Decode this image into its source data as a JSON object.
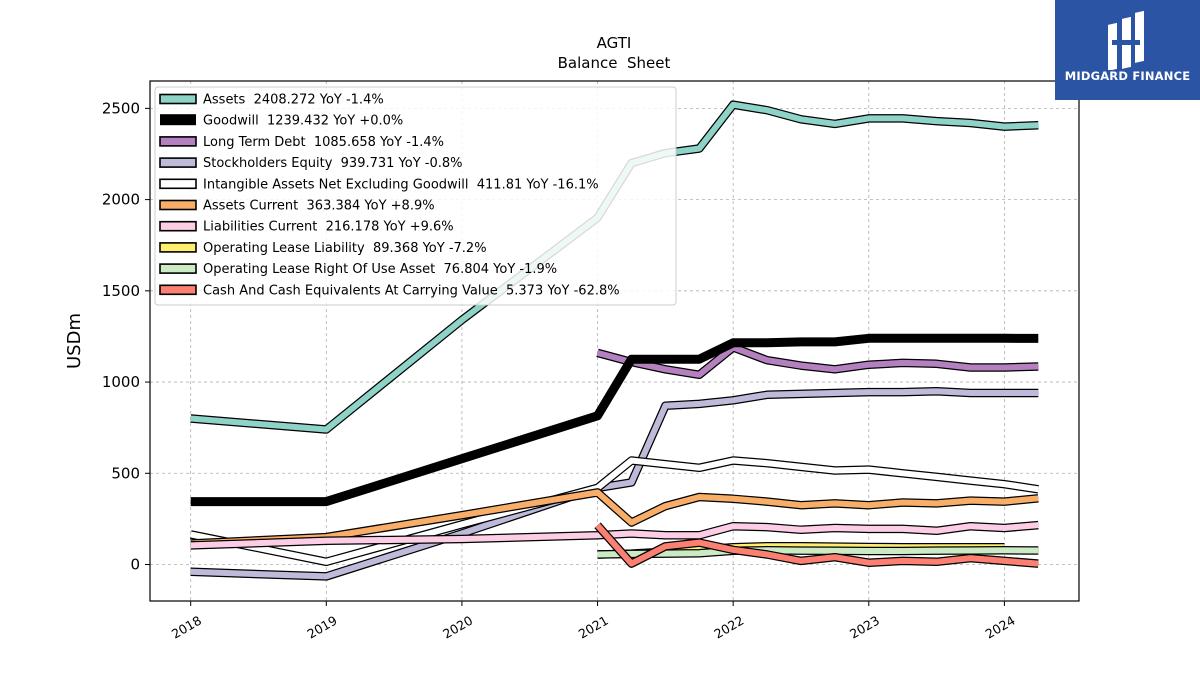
{
  "brand": {
    "name": "MIDGARD FINANCE",
    "logo_icon": "double-tower-logo-icon",
    "background": "#2b55a4"
  },
  "chart_data": {
    "type": "line",
    "title": "AGTI",
    "subtitle": "Balance  Sheet",
    "xlabel": "",
    "ylabel": "USDm",
    "xlim": [
      2017.7,
      2024.55
    ],
    "ylim": [
      -200,
      2650
    ],
    "xticks": [
      "2018",
      "2019",
      "2020",
      "2021",
      "2022",
      "2023",
      "2024"
    ],
    "yticks": [
      0,
      500,
      1000,
      1500,
      2000,
      2500
    ],
    "grid": true,
    "legend_position": "top-left",
    "series": [
      {
        "name": "Assets",
        "summary": "Assets  2408.272 YoY -1.4%",
        "color": "#8dd3c7",
        "width": 6,
        "points": [
          [
            2018.0,
            800
          ],
          [
            2019.0,
            740
          ],
          [
            2020.0,
            1340
          ],
          [
            2021.0,
            1900
          ],
          [
            2021.25,
            2200
          ],
          [
            2021.5,
            2255
          ],
          [
            2021.75,
            2280
          ],
          [
            2022.0,
            2520
          ],
          [
            2022.25,
            2490
          ],
          [
            2022.5,
            2440
          ],
          [
            2022.75,
            2415
          ],
          [
            2023.0,
            2445
          ],
          [
            2023.25,
            2445
          ],
          [
            2023.5,
            2430
          ],
          [
            2023.75,
            2420
          ],
          [
            2024.0,
            2400
          ],
          [
            2024.25,
            2408
          ]
        ]
      },
      {
        "name": "Goodwill",
        "summary": "Goodwill  1239.432 YoY +0.0%",
        "color": "#000000",
        "width": 9,
        "points": [
          [
            2018.0,
            345
          ],
          [
            2019.0,
            345
          ],
          [
            2020.0,
            580
          ],
          [
            2021.0,
            815
          ],
          [
            2021.25,
            1125
          ],
          [
            2021.5,
            1125
          ],
          [
            2021.75,
            1125
          ],
          [
            2022.0,
            1215
          ],
          [
            2022.25,
            1215
          ],
          [
            2022.5,
            1220
          ],
          [
            2022.75,
            1220
          ],
          [
            2023.0,
            1240
          ],
          [
            2023.25,
            1240
          ],
          [
            2023.5,
            1240
          ],
          [
            2023.75,
            1240
          ],
          [
            2024.0,
            1240
          ],
          [
            2024.25,
            1239
          ]
        ]
      },
      {
        "name": "Long Term Debt",
        "summary": "Long Term Debt  1085.658 YoY -1.4%",
        "color": "#b580bf",
        "width": 6,
        "points": [
          [
            2021.0,
            1160
          ],
          [
            2021.25,
            1110
          ],
          [
            2021.5,
            1070
          ],
          [
            2021.75,
            1040
          ],
          [
            2022.0,
            1190
          ],
          [
            2022.25,
            1120
          ],
          [
            2022.5,
            1090
          ],
          [
            2022.75,
            1070
          ],
          [
            2023.0,
            1095
          ],
          [
            2023.25,
            1105
          ],
          [
            2023.5,
            1100
          ],
          [
            2023.75,
            1080
          ],
          [
            2024.0,
            1080
          ],
          [
            2024.25,
            1085
          ]
        ]
      },
      {
        "name": "Stockholders Equity",
        "summary": "Stockholders Equity  939.731 YoY -0.8%",
        "color": "#bebada",
        "width": 6,
        "points": [
          [
            2018.0,
            -40
          ],
          [
            2019.0,
            -65
          ],
          [
            2020.0,
            170
          ],
          [
            2021.0,
            420
          ],
          [
            2021.25,
            450
          ],
          [
            2021.5,
            870
          ],
          [
            2021.75,
            880
          ],
          [
            2022.0,
            900
          ],
          [
            2022.25,
            930
          ],
          [
            2022.5,
            935
          ],
          [
            2022.75,
            940
          ],
          [
            2023.0,
            945
          ],
          [
            2023.25,
            945
          ],
          [
            2023.5,
            950
          ],
          [
            2023.75,
            940
          ],
          [
            2024.0,
            940
          ],
          [
            2024.25,
            940
          ]
        ]
      },
      {
        "name": "Intangible Assets Net Excluding Goodwill",
        "summary": "Intangible Assets Net Excluding Goodwill  411.81 YoY -16.1%",
        "color": "#ffffff",
        "width": 6,
        "points": [
          [
            2018.0,
            165
          ],
          [
            2019.0,
            15
          ],
          [
            2020.0,
            220
          ],
          [
            2021.0,
            420
          ],
          [
            2021.25,
            570
          ],
          [
            2021.5,
            550
          ],
          [
            2021.75,
            530
          ],
          [
            2022.0,
            570
          ],
          [
            2022.25,
            555
          ],
          [
            2022.5,
            535
          ],
          [
            2022.75,
            515
          ],
          [
            2023.0,
            520
          ],
          [
            2023.25,
            500
          ],
          [
            2023.5,
            480
          ],
          [
            2023.75,
            460
          ],
          [
            2024.0,
            440
          ],
          [
            2024.25,
            412
          ]
        ]
      },
      {
        "name": "Assets Current",
        "summary": "Assets Current  363.384 YoY +8.9%",
        "color": "#f8ae68",
        "width": 6,
        "points": [
          [
            2018.0,
            115
          ],
          [
            2019.0,
            150
          ],
          [
            2020.0,
            270
          ],
          [
            2021.0,
            395
          ],
          [
            2021.25,
            230
          ],
          [
            2021.5,
            320
          ],
          [
            2021.75,
            370
          ],
          [
            2022.0,
            360
          ],
          [
            2022.25,
            345
          ],
          [
            2022.5,
            325
          ],
          [
            2022.75,
            335
          ],
          [
            2023.0,
            325
          ],
          [
            2023.25,
            340
          ],
          [
            2023.5,
            335
          ],
          [
            2023.75,
            350
          ],
          [
            2024.0,
            345
          ],
          [
            2024.25,
            363
          ]
        ]
      },
      {
        "name": "Liabilities Current",
        "summary": "Liabilities Current  216.178 YoY +9.6%",
        "color": "#fccde5",
        "width": 6,
        "points": [
          [
            2018.0,
            105
          ],
          [
            2019.0,
            130
          ],
          [
            2020.0,
            140
          ],
          [
            2021.0,
            160
          ],
          [
            2021.25,
            170
          ],
          [
            2021.5,
            160
          ],
          [
            2021.75,
            160
          ],
          [
            2022.0,
            210
          ],
          [
            2022.25,
            205
          ],
          [
            2022.5,
            190
          ],
          [
            2022.75,
            200
          ],
          [
            2023.0,
            195
          ],
          [
            2023.25,
            195
          ],
          [
            2023.5,
            185
          ],
          [
            2023.75,
            210
          ],
          [
            2024.0,
            200
          ],
          [
            2024.25,
            216
          ]
        ]
      },
      {
        "name": "Operating Lease Liability",
        "summary": "Operating Lease Liability  89.368 YoY -7.2%",
        "color": "#ffed6f",
        "width": 6,
        "points": [
          [
            2021.0,
            55
          ],
          [
            2021.25,
            60
          ],
          [
            2021.5,
            70
          ],
          [
            2021.75,
            80
          ],
          [
            2022.0,
            95
          ],
          [
            2022.25,
            100
          ],
          [
            2022.5,
            100
          ],
          [
            2022.75,
            98
          ],
          [
            2023.0,
            96
          ],
          [
            2023.25,
            95
          ],
          [
            2023.5,
            95
          ],
          [
            2023.75,
            95
          ],
          [
            2024.0,
            95
          ]
        ]
      },
      {
        "name": "Operating Lease Right Of Use Asset",
        "summary": "Operating Lease Right Of Use Asset  76.804 YoY -1.9%",
        "color": "#ccebc5",
        "width": 6,
        "points": [
          [
            2021.0,
            55
          ],
          [
            2021.25,
            58
          ],
          [
            2021.5,
            60
          ],
          [
            2021.75,
            62
          ],
          [
            2022.0,
            75
          ],
          [
            2022.25,
            78
          ],
          [
            2022.5,
            76
          ],
          [
            2022.75,
            75
          ],
          [
            2023.0,
            74
          ],
          [
            2023.25,
            74
          ],
          [
            2023.5,
            76
          ],
          [
            2023.75,
            77
          ],
          [
            2024.0,
            78
          ],
          [
            2024.25,
            77
          ]
        ]
      },
      {
        "name": "Cash And Cash Equivalents At Carrying Value",
        "summary": "Cash And Cash Equivalents At Carrying Value  5.373 YoY -62.8%",
        "color": "#fb8072",
        "width": 6,
        "points": [
          [
            2021.0,
            215
          ],
          [
            2021.25,
            5
          ],
          [
            2021.5,
            100
          ],
          [
            2021.75,
            120
          ],
          [
            2022.0,
            80
          ],
          [
            2022.25,
            55
          ],
          [
            2022.5,
            20
          ],
          [
            2022.75,
            40
          ],
          [
            2023.0,
            10
          ],
          [
            2023.25,
            20
          ],
          [
            2023.5,
            15
          ],
          [
            2023.75,
            35
          ],
          [
            2024.0,
            20
          ],
          [
            2024.25,
            5
          ]
        ]
      }
    ]
  }
}
